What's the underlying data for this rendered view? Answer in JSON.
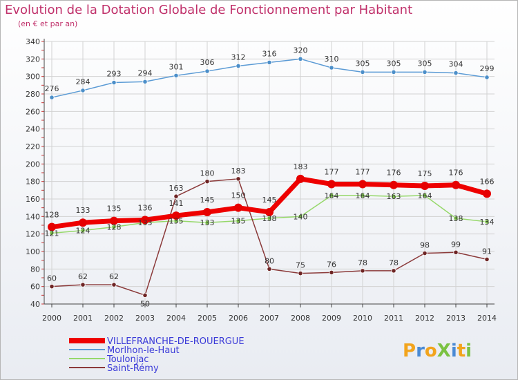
{
  "chart_data": {
    "type": "line",
    "title": "Evolution de la Dotation Globale de Fonctionnement par Habitant",
    "subtitle": "(en € et par an)",
    "xlabel": "",
    "ylabel": "",
    "ylim": [
      40,
      340
    ],
    "yticks": [
      40,
      60,
      80,
      100,
      120,
      140,
      160,
      180,
      200,
      220,
      240,
      260,
      280,
      300,
      320,
      340
    ],
    "categories": [
      "2000",
      "2001",
      "2002",
      "2003",
      "2004",
      "2005",
      "2006",
      "2007",
      "2008",
      "2009",
      "2010",
      "2011",
      "2012",
      "2013",
      "2014"
    ],
    "grid": true,
    "series": [
      {
        "name": "Morlhon-le-Haut",
        "color": "#5b9bd5",
        "marker_color": "#4c8fc9",
        "values": [
          276,
          284,
          293,
          294,
          301,
          306,
          312,
          316,
          320,
          310,
          305,
          305,
          305,
          304,
          299
        ],
        "labels": [
          "276",
          "284",
          "293",
          "294",
          "301",
          "306",
          "312",
          "316",
          "320",
          "310",
          "305",
          "305",
          "305",
          "304",
          "299"
        ]
      },
      {
        "name": "Toulonjac",
        "color": "#96d86a",
        "marker_color": "#7cc24a",
        "values": [
          121,
          124,
          128,
          133,
          135,
          133,
          135,
          138,
          140,
          164,
          164,
          163,
          164,
          138,
          134
        ],
        "labels": [
          "121",
          "124",
          "128",
          "133",
          "135",
          "133",
          "135",
          "138",
          "140",
          "164",
          "164",
          "163",
          "164",
          "138",
          "134"
        ]
      },
      {
        "name": "Saint-Rémy",
        "color": "#8b3a3a",
        "marker_color": "#6e2525",
        "values": [
          60,
          62,
          62,
          50,
          163,
          180,
          183,
          80,
          75,
          76,
          78,
          78,
          98,
          99,
          91
        ],
        "labels": [
          "60",
          "62",
          "62",
          "50",
          "163",
          "180",
          "183",
          "80",
          "75",
          "76",
          "78",
          "78",
          "98",
          "99",
          "91"
        ]
      },
      {
        "name": "VILLEFRANCHE-DE-ROUERGUE",
        "color": "#ee0000",
        "marker_color": "#e60000",
        "values": [
          128,
          133,
          135,
          136,
          141,
          145,
          150,
          145,
          183,
          177,
          177,
          176,
          175,
          176,
          166
        ],
        "labels": [
          "128",
          "133",
          "135",
          "136",
          "141",
          "145",
          "150",
          "145",
          "183",
          "177",
          "177",
          "176",
          "175",
          "176",
          "166"
        ]
      }
    ],
    "legend": [
      "VILLEFRANCHE-DE-ROUERGUE",
      "Morlhon-le-Haut",
      "Toulonjac",
      "Saint-Rémy"
    ]
  },
  "logo": "ProXiti"
}
